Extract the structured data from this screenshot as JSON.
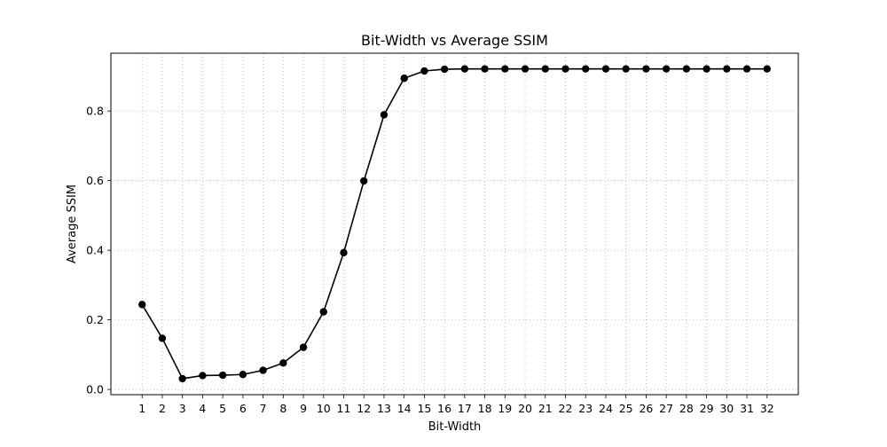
{
  "chart_data": {
    "type": "line",
    "title": "Bit-Width vs Average SSIM",
    "xlabel": "Bit-Width",
    "ylabel": "Average SSIM",
    "x": [
      1,
      2,
      3,
      4,
      5,
      6,
      7,
      8,
      9,
      10,
      11,
      12,
      13,
      14,
      15,
      16,
      17,
      18,
      19,
      20,
      21,
      22,
      23,
      24,
      25,
      26,
      27,
      28,
      29,
      30,
      31,
      32
    ],
    "series": [
      {
        "values": [
          0.244,
          0.147,
          0.031,
          0.04,
          0.041,
          0.043,
          0.055,
          0.076,
          0.121,
          0.223,
          0.393,
          0.599,
          0.789,
          0.894,
          0.915,
          0.92,
          0.921,
          0.921,
          0.921,
          0.921,
          0.921,
          0.921,
          0.921,
          0.921,
          0.921,
          0.921,
          0.921,
          0.921,
          0.921,
          0.921,
          0.921,
          0.921
        ],
        "color": "#000000",
        "marker": "circle"
      }
    ],
    "xlim": [
      -0.55,
      33.55
    ],
    "ylim": [
      -0.015,
      0.966
    ],
    "xticks": [
      "1",
      "2",
      "3",
      "4",
      "5",
      "6",
      "7",
      "8",
      "9",
      "10",
      "11",
      "12",
      "13",
      "14",
      "15",
      "16",
      "17",
      "18",
      "19",
      "20",
      "21",
      "22",
      "23",
      "24",
      "25",
      "26",
      "27",
      "28",
      "29",
      "30",
      "31",
      "32"
    ],
    "yticks": [
      "0.0",
      "0.2",
      "0.4",
      "0.6",
      "0.8"
    ],
    "grid": true,
    "grid_style": "dotted"
  }
}
